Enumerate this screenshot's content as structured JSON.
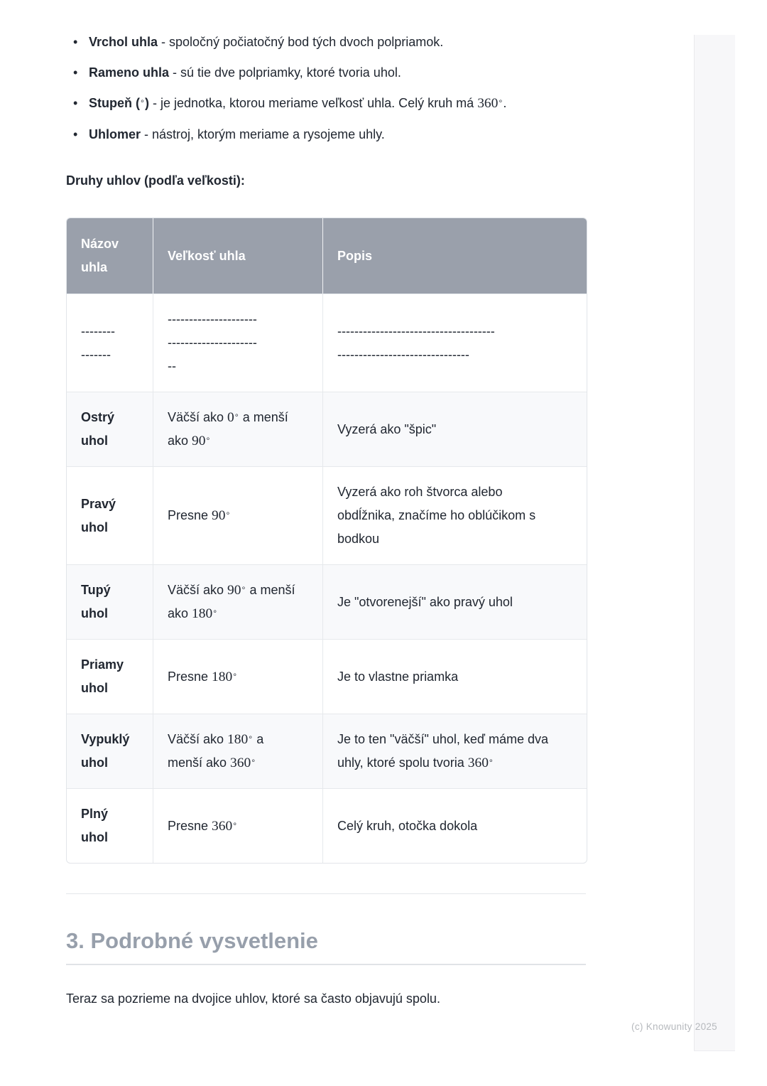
{
  "bullets": [
    {
      "segments": [
        {
          "t": "Vrchol uhla",
          "b": 1
        },
        {
          "t": " - spoločný počiatočný bod tých dvoch polpriamok."
        }
      ]
    },
    {
      "segments": [
        {
          "t": "Rameno uhla",
          "b": 1
        },
        {
          "t": " - sú tie dve polpriamky, ktoré tvoria uhol."
        }
      ]
    },
    {
      "segments": [
        {
          "t": "Stupeň (",
          "b": 1
        },
        {
          "t": "∘",
          "d": 1
        },
        {
          "t": ")",
          "b": 1
        },
        {
          "t": " - je jednotka, ktorou meriame veľkosť uhla. Celý kruh má "
        },
        {
          "t": "360",
          "m": 1
        },
        {
          "t": "∘",
          "d": 1
        },
        {
          "t": "."
        }
      ]
    },
    {
      "segments": [
        {
          "t": "Uhlomer",
          "b": 1
        },
        {
          "t": " - nástroj, ktorým meriame a rysojeme uhly."
        }
      ]
    }
  ],
  "section_label": "Druhy uhlov (podľa veľkosti):",
  "table": {
    "headers": [
      "Názov\nuhla",
      "Veľkosť uhla",
      "Popis"
    ],
    "rows": [
      {
        "name": [
          {
            "t": "--------\n-------"
          }
        ],
        "size": [
          {
            "t": "---------------------\n---------------------\n--"
          }
        ],
        "desc": [
          {
            "t": "-------------------------------------\n-------------------------------"
          }
        ]
      },
      {
        "name": [
          {
            "t": "Ostrý\nuhol",
            "b": 1
          }
        ],
        "size": [
          {
            "t": "Väčší ako "
          },
          {
            "t": "0",
            "m": 1
          },
          {
            "t": "∘",
            "d": 1
          },
          {
            "t": " a menší\nako "
          },
          {
            "t": "90",
            "m": 1
          },
          {
            "t": "∘",
            "d": 1
          }
        ],
        "desc": [
          {
            "t": "Vyzerá ako \"špic\""
          }
        ]
      },
      {
        "name": [
          {
            "t": "Pravý\nuhol",
            "b": 1
          }
        ],
        "size": [
          {
            "t": "Presne "
          },
          {
            "t": "90",
            "m": 1
          },
          {
            "t": "∘",
            "d": 1
          }
        ],
        "desc": [
          {
            "t": "Vyzerá ako roh štvorca alebo\nobdĺžnika, značíme ho oblúčikom s\nbodkou"
          }
        ]
      },
      {
        "name": [
          {
            "t": "Tupý\nuhol",
            "b": 1
          }
        ],
        "size": [
          {
            "t": "Väčší ako "
          },
          {
            "t": "90",
            "m": 1
          },
          {
            "t": "∘",
            "d": 1
          },
          {
            "t": " a menší\nako "
          },
          {
            "t": "180",
            "m": 1
          },
          {
            "t": "∘",
            "d": 1
          }
        ],
        "desc": [
          {
            "t": "Je \"otvorenejší\" ako pravý uhol"
          }
        ]
      },
      {
        "name": [
          {
            "t": "Priamy\nuhol",
            "b": 1
          }
        ],
        "size": [
          {
            "t": "Presne "
          },
          {
            "t": "180",
            "m": 1
          },
          {
            "t": "∘",
            "d": 1
          }
        ],
        "desc": [
          {
            "t": "Je to vlastne priamka"
          }
        ]
      },
      {
        "name": [
          {
            "t": "Vypuklý\nuhol",
            "b": 1
          }
        ],
        "size": [
          {
            "t": "Väčší ako "
          },
          {
            "t": "180",
            "m": 1
          },
          {
            "t": "∘",
            "d": 1
          },
          {
            "t": " a\nmenší ako "
          },
          {
            "t": "360",
            "m": 1
          },
          {
            "t": "∘",
            "d": 1
          }
        ],
        "desc": [
          {
            "t": "Je to ten \"väčší\" uhol, keď máme dva\nuhly, ktoré spolu tvoria "
          },
          {
            "t": "360",
            "m": 1
          },
          {
            "t": "∘",
            "d": 1
          }
        ]
      },
      {
        "name": [
          {
            "t": "Plný\nuhol",
            "b": 1
          }
        ],
        "size": [
          {
            "t": "Presne "
          },
          {
            "t": "360",
            "m": 1
          },
          {
            "t": "∘",
            "d": 1
          }
        ],
        "desc": [
          {
            "t": "Celý kruh, otočka dokola"
          }
        ]
      }
    ]
  },
  "heading": "3. Podrobné vysvetlenie",
  "paragraph": "Teraz sa pozrieme na dvojice uhlov, ktoré sa často objavujú spolu.",
  "footer": "(c) Knowunity 2025",
  "colors": {
    "table_header_bg": "#9aa0ab",
    "table_header_text": "#ffffff",
    "row_stripe": "#f8f9fb",
    "table_border": "#e6e9ec",
    "heading_text": "#979fab",
    "body_text": "#212731",
    "footer_text": "#b6b9bd",
    "side_strip_bg": "#f7f7f9"
  }
}
